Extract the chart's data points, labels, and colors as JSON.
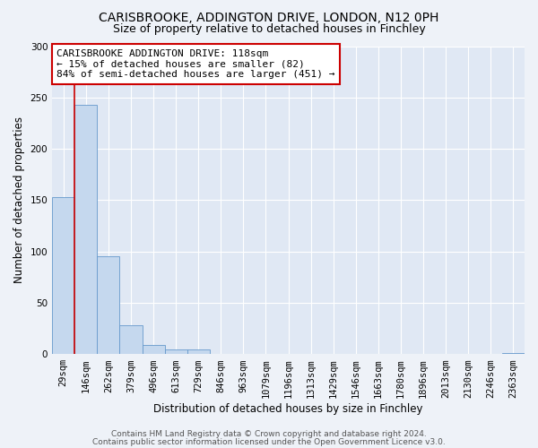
{
  "title": "CARISBROOKE, ADDINGTON DRIVE, LONDON, N12 0PH",
  "subtitle": "Size of property relative to detached houses in Finchley",
  "xlabel": "Distribution of detached houses by size in Finchley",
  "ylabel": "Number of detached properties",
  "bar_labels": [
    "29sqm",
    "146sqm",
    "262sqm",
    "379sqm",
    "496sqm",
    "613sqm",
    "729sqm",
    "846sqm",
    "963sqm",
    "1079sqm",
    "1196sqm",
    "1313sqm",
    "1429sqm",
    "1546sqm",
    "1663sqm",
    "1780sqm",
    "1896sqm",
    "2013sqm",
    "2130sqm",
    "2246sqm",
    "2363sqm"
  ],
  "bar_values": [
    153,
    243,
    95,
    28,
    9,
    5,
    5,
    0,
    0,
    0,
    0,
    0,
    0,
    0,
    0,
    0,
    0,
    0,
    0,
    0,
    1
  ],
  "bar_color": "#c5d8ee",
  "bar_edge_color": "#6699cc",
  "marker_color": "#cc0000",
  "ylim": [
    0,
    300
  ],
  "yticks": [
    0,
    50,
    100,
    150,
    200,
    250,
    300
  ],
  "annotation_title": "CARISBROOKE ADDINGTON DRIVE: 118sqm",
  "annotation_line1": "← 15% of detached houses are smaller (82)",
  "annotation_line2": "84% of semi-detached houses are larger (451) →",
  "footer1": "Contains HM Land Registry data © Crown copyright and database right 2024.",
  "footer2": "Contains public sector information licensed under the Open Government Licence v3.0.",
  "bg_color": "#eef2f8",
  "plot_bg_color": "#e0e8f4",
  "grid_color": "#ffffff",
  "annotation_box_color": "#ffffff",
  "annotation_border_color": "#cc0000",
  "title_fontsize": 10,
  "subtitle_fontsize": 9,
  "axis_label_fontsize": 8.5,
  "tick_fontsize": 7.5,
  "annotation_fontsize": 8,
  "footer_fontsize": 6.5
}
